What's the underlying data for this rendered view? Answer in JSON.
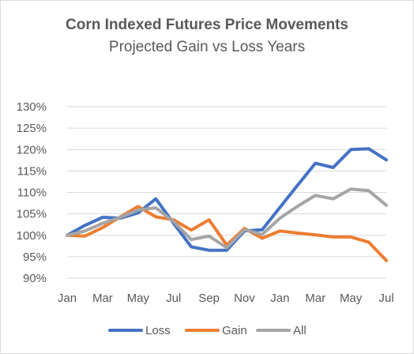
{
  "chart_data": {
    "type": "line",
    "title": "Corn Indexed Futures Price Movements",
    "subtitle": "Projected Gain vs Loss Years",
    "xlabel": "",
    "ylabel": "",
    "ylim": [
      90,
      130
    ],
    "y_ticks": [
      "90%",
      "95%",
      "100%",
      "105%",
      "110%",
      "115%",
      "120%",
      "125%",
      "130%"
    ],
    "y_tick_values": [
      90,
      95,
      100,
      105,
      110,
      115,
      120,
      125,
      130
    ],
    "x_tick_labels": [
      "Jan",
      "Mar",
      "May",
      "Jul",
      "Sep",
      "Nov",
      "Jan",
      "Mar",
      "May",
      "Jul"
    ],
    "grid": "horizontal",
    "legend_position": "bottom",
    "series": [
      {
        "name": "Loss",
        "color": "#4472C4",
        "values": [
          100,
          102.3,
          104.2,
          104.0,
          105.2,
          108.5,
          102.8,
          97.3,
          96.5,
          96.5,
          101.0,
          101.3,
          106.5,
          111.7,
          116.8,
          115.8,
          120.0,
          120.2,
          117.6
        ]
      },
      {
        "name": "Gain",
        "color": "#ED7D31",
        "values": [
          100,
          99.8,
          101.8,
          104.3,
          106.7,
          104.3,
          103.6,
          101.2,
          103.6,
          97.7,
          101.6,
          99.3,
          101.0,
          100.5,
          100.1,
          99.6,
          99.6,
          98.4,
          94.1
        ]
      },
      {
        "name": "All",
        "color": "#A5A5A5",
        "values": [
          100,
          101.0,
          102.8,
          104.2,
          105.9,
          106.4,
          103.2,
          99.0,
          99.8,
          97.1,
          101.3,
          100.2,
          104.0,
          106.8,
          109.3,
          108.5,
          110.8,
          110.4,
          107.0
        ]
      }
    ]
  }
}
